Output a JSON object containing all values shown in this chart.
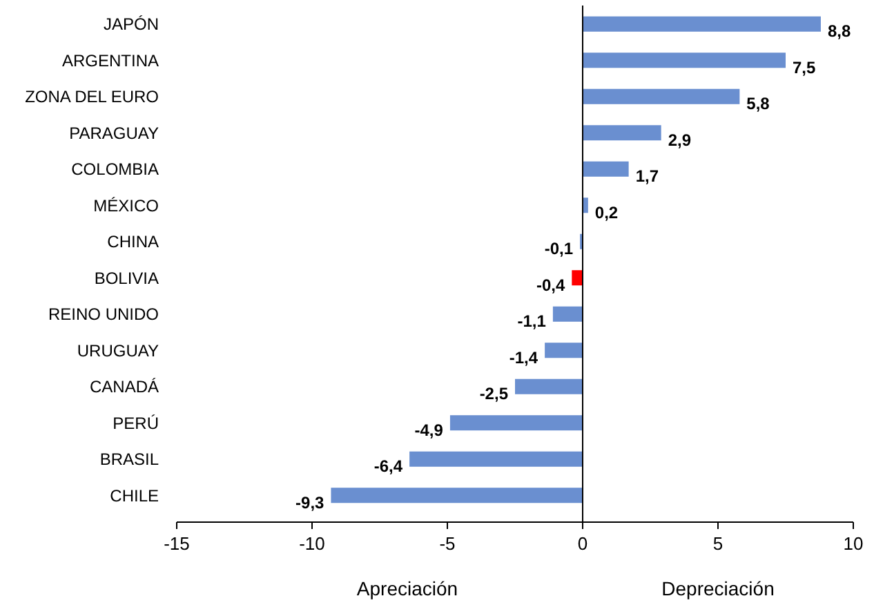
{
  "chart_data": {
    "type": "bar",
    "orientation": "horizontal",
    "categories": [
      "JAPÓN",
      "ARGENTINA",
      "ZONA DEL EURO",
      "PARAGUAY",
      "COLOMBIA",
      "MÉXICO",
      "CHINA",
      "BOLIVIA",
      "REINO UNIDO",
      "URUGUAY",
      "CANADÁ",
      "PERÚ",
      "BRASIL",
      "CHILE"
    ],
    "values": [
      8.8,
      7.5,
      5.8,
      2.9,
      1.7,
      0.2,
      -0.1,
      -0.4,
      -1.1,
      -1.4,
      -2.5,
      -4.9,
      -6.4,
      -9.3
    ],
    "value_labels": [
      "8,8",
      "7,5",
      "5,8",
      "2,9",
      "1,7",
      "0,2",
      "-0,1",
      "-0,4",
      "-1,1",
      "-1,4",
      "-2,5",
      "-4,9",
      "-6,4",
      "-9,3"
    ],
    "colors": [
      "#6a8fd0",
      "#6a8fd0",
      "#6a8fd0",
      "#6a8fd0",
      "#6a8fd0",
      "#6a8fd0",
      "#6a8fd0",
      "#ff0000",
      "#6a8fd0",
      "#6a8fd0",
      "#6a8fd0",
      "#6a8fd0",
      "#6a8fd0",
      "#6a8fd0"
    ],
    "xlim": [
      -15,
      10
    ],
    "xticks": [
      -15,
      -10,
      -5,
      0,
      5,
      10
    ],
    "annotations": [
      "Apreciación",
      "Depreciación"
    ]
  }
}
